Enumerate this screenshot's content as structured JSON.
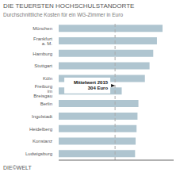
{
  "chart_data": {
    "type": "bar",
    "orientation": "horizontal",
    "title": "DIE TEUERSTEN HOCHSCHULSTANDORTE",
    "subtitle": "Durchschnittliche Kosten für ein WG-Zimmer in Euro",
    "categories": [
      "München",
      "Frankfurt a. M.",
      "Hamburg",
      "Stuttgart",
      "Köln",
      "Freiburg im Breisgau",
      "Berlin",
      "Ingolstadt",
      "Heidelberg",
      "Konstanz",
      "Ludwigsburg"
    ],
    "values": [
      560,
      530,
      510,
      490,
      465,
      340,
      430,
      425,
      420,
      415,
      412
    ],
    "color": "#afc5d0",
    "xlim": [
      0,
      620
    ],
    "tick_labels": "y",
    "grid": false,
    "reference_line": {
      "x": 304,
      "label": [
        "Mittelwert 2015",
        "304 Euro"
      ],
      "color": "#aaaaaa",
      "line_style": "dashed"
    },
    "footer": "DIE©WELT"
  }
}
